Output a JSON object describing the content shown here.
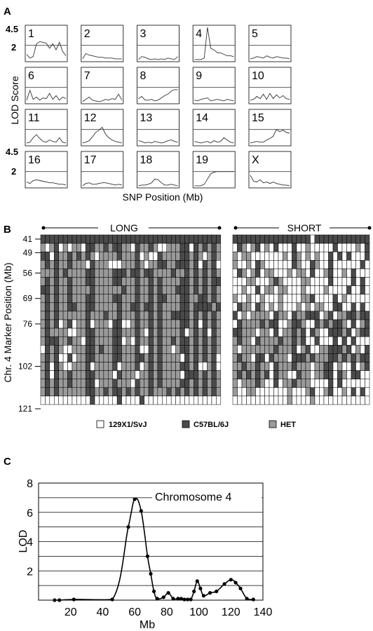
{
  "panelA": {
    "label": "A",
    "ylabel": "LOD Score",
    "xlabel": "SNP Position (Mb)",
    "ytick_top": "4.5",
    "ytick_mid": "2",
    "ytick_top_row4": "4.5",
    "ytick_mid_row4": "2",
    "chromosomes": [
      "1",
      "2",
      "3",
      "4",
      "5",
      "6",
      "7",
      "8",
      "9",
      "10",
      "11",
      "12",
      "13",
      "14",
      "15",
      "16",
      "17",
      "18",
      "19",
      "X"
    ]
  },
  "panelB": {
    "label": "B",
    "ylabel": "Chr. 4 Marker Position (Mb)",
    "group_long": "LONG",
    "group_short": "SHORT",
    "ticks": [
      "41",
      "49",
      "56",
      "69",
      "76",
      "102",
      "121"
    ],
    "legend": [
      {
        "label": "129X1/SvJ",
        "color": "#ffffff"
      },
      {
        "label": "C57BL/6J",
        "color": "#4a4a4a"
      },
      {
        "label": "HET",
        "color": "#9a9a9a"
      }
    ]
  },
  "chart_data": [
    {
      "type": "line",
      "panel": "A",
      "ylim": [
        0,
        4.5
      ],
      "reference_line": 2,
      "series": [
        {
          "name": "1",
          "values": [
            0.8,
            0.3,
            0.5,
            2.2,
            2.5,
            2.4,
            2.3,
            1.6,
            2.2,
            1.4,
            2.4,
            1.2,
            0.6
          ]
        },
        {
          "name": "2",
          "values": [
            0.2,
            0.9,
            0.7,
            0.6,
            0.5,
            0.4,
            0.4,
            0.3,
            0.3,
            0.3,
            0.2,
            0.2,
            0.2
          ]
        },
        {
          "name": "3",
          "values": [
            0.1,
            0.5,
            0.4,
            0.2,
            0.1,
            0.2,
            0.1,
            0.2,
            0.1,
            0.3,
            0.2,
            0.1,
            0.5
          ]
        },
        {
          "name": "4",
          "values": [
            0.1,
            0.1,
            0.1,
            0.3,
            4.4,
            1.6,
            1.4,
            1.0,
            1.0,
            0.8,
            0.6,
            0.6,
            0.5
          ]
        },
        {
          "name": "5",
          "values": [
            0.2,
            0.3,
            0.5,
            0.4,
            0.3,
            0.6,
            0.4,
            0.3,
            0.5,
            0.4,
            0.3,
            0.3,
            0.2
          ]
        },
        {
          "name": "6",
          "values": [
            0.3,
            1.6,
            0.4,
            0.7,
            0.3,
            0.6,
            0.5,
            1.2,
            0.4,
            0.9,
            0.3,
            0.7,
            0.5
          ]
        },
        {
          "name": "7",
          "values": [
            0.1,
            0.4,
            0.7,
            0.3,
            0.2,
            0.1,
            0.2,
            0.4,
            0.3,
            0.5,
            0.4,
            1.1,
            0.3
          ]
        },
        {
          "name": "8",
          "values": [
            0.5,
            0.8,
            0.3,
            0.3,
            0.4,
            0.2,
            0.3,
            0.6,
            0.9,
            1.1,
            1.5,
            1.7,
            1.7
          ]
        },
        {
          "name": "9",
          "values": [
            0.3,
            0.2,
            0.4,
            0.5,
            0.6,
            0.2,
            0.3,
            0.4,
            0.3,
            0.2,
            0.4,
            0.3,
            0.2
          ]
        },
        {
          "name": "10",
          "values": [
            0.3,
            0.4,
            0.8,
            0.5,
            1.1,
            0.4,
            1.2,
            0.5,
            1.0,
            0.6,
            0.9,
            0.5,
            0.4
          ]
        },
        {
          "name": "11",
          "values": [
            0.2,
            0.3,
            0.9,
            1.3,
            0.8,
            0.4,
            0.3,
            0.6,
            0.4,
            0.3,
            0.9,
            0.3,
            0.2
          ]
        },
        {
          "name": "12",
          "values": [
            0.2,
            0.3,
            0.5,
            1.0,
            1.6,
            1.9,
            2.3,
            1.4,
            0.9,
            0.6,
            0.4,
            0.3,
            0.2
          ]
        },
        {
          "name": "13",
          "values": [
            0.5,
            0.4,
            0.2,
            0.3,
            0.2,
            0.4,
            0.3,
            0.2,
            0.3,
            0.5,
            0.6,
            0.4,
            0.3
          ]
        },
        {
          "name": "14",
          "values": [
            0.4,
            0.3,
            0.2,
            0.3,
            0.4,
            0.2,
            0.5,
            0.3,
            0.4,
            0.9,
            0.6,
            0.3,
            0.2
          ]
        },
        {
          "name": "15",
          "values": [
            0.2,
            0.3,
            0.4,
            0.3,
            0.3,
            0.6,
            0.8,
            1.1,
            2.0,
            1.7,
            1.9,
            1.6,
            1.5
          ]
        },
        {
          "name": "16",
          "values": [
            0.6,
            0.4,
            0.8,
            0.9,
            0.8,
            0.7,
            0.6,
            0.5,
            0.5,
            0.4,
            0.3,
            0.3,
            0.2
          ]
        },
        {
          "name": "17",
          "values": [
            0.1,
            0.4,
            0.5,
            0.3,
            0.3,
            0.4,
            0.5,
            0.5,
            0.4,
            0.3,
            0.2,
            0.3,
            0.2
          ]
        },
        {
          "name": "18",
          "values": [
            0.1,
            0.2,
            0.2,
            0.3,
            0.5,
            1.0,
            0.9,
            0.5,
            0.2,
            0.2,
            0.3,
            0.2,
            0.1
          ]
        },
        {
          "name": "19",
          "values": [
            0.1,
            0.1,
            0.1,
            0.3,
            1.0,
            1.7,
            1.9,
            2.0,
            2.0,
            2.0,
            2.0,
            2.0,
            2.0
          ]
        },
        {
          "name": "X",
          "values": [
            1.5,
            0.7,
            0.6,
            0.9,
            0.5,
            0.6,
            0.4,
            0.6,
            0.4,
            0.3,
            0.2,
            0.2,
            0.1
          ]
        }
      ]
    },
    {
      "type": "heatmap",
      "panel": "B",
      "rows": 20,
      "long_columns": 40,
      "short_columns": 30,
      "legend": [
        "129X1/SvJ",
        "C57BL/6J",
        "HET"
      ]
    },
    {
      "type": "line",
      "panel": "C",
      "label": "C",
      "title": "Chromosome 4",
      "xlabel": "Mb",
      "ylabel": "LOD",
      "xlim": [
        0,
        140
      ],
      "ylim": [
        0,
        8
      ],
      "xticks": [
        "20",
        "40",
        "60",
        "80",
        "100",
        "120",
        "140"
      ],
      "yticks": [
        "2",
        "4",
        "6",
        "8"
      ],
      "x": [
        10,
        13,
        22,
        46,
        56,
        60,
        64,
        68,
        70,
        72,
        74,
        78,
        81,
        84,
        87,
        89,
        91,
        93,
        95,
        97,
        99,
        101,
        103,
        107,
        111,
        116,
        120,
        123,
        126,
        130,
        134
      ],
      "y": [
        0,
        0,
        0.05,
        0.05,
        5.0,
        6.9,
        6.1,
        3.0,
        1.8,
        0.6,
        0.1,
        0.2,
        0.5,
        0.1,
        0.1,
        0.1,
        0.05,
        0.05,
        0.05,
        0.6,
        1.3,
        0.8,
        0.3,
        0.5,
        0.6,
        1.1,
        1.4,
        1.2,
        0.8,
        0.1,
        0.05
      ]
    }
  ]
}
